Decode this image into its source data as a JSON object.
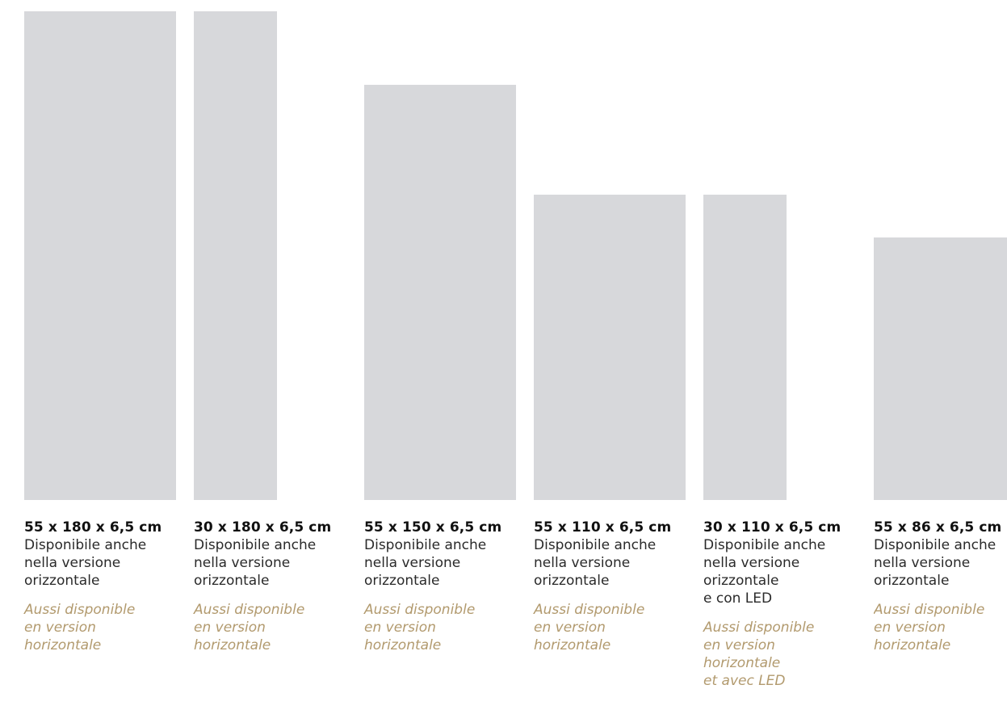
{
  "accent_color": "#b29a6e",
  "panel_color": "#d7d8db",
  "products": [
    {
      "dims": "55 x 180 x 6,5 cm",
      "it": [
        "Disponibile anche",
        "nella versione",
        "orizzontale"
      ],
      "fr": [
        "Aussi disponible",
        "en version",
        "horizontale"
      ]
    },
    {
      "dims": "30 x 180 x 6,5 cm",
      "it": [
        "Disponibile anche",
        "nella versione",
        "orizzontale"
      ],
      "fr": [
        "Aussi disponible",
        "en version",
        "horizontale"
      ]
    },
    {
      "dims": "55 x 150 x 6,5 cm",
      "it": [
        "Disponibile anche",
        "nella versione",
        "orizzontale"
      ],
      "fr": [
        "Aussi disponible",
        "en version",
        "horizontale"
      ]
    },
    {
      "dims": "55 x 110 x 6,5 cm",
      "it": [
        "Disponibile anche",
        "nella versione",
        "orizzontale"
      ],
      "fr": [
        "Aussi disponible",
        "en version",
        "horizontale"
      ]
    },
    {
      "dims": "30 x 110 x 6,5 cm",
      "it": [
        "Disponibile anche",
        "nella versione",
        "orizzontale",
        "e con LED"
      ],
      "fr": [
        "Aussi disponible",
        "en version",
        "horizontale",
        "et avec LED"
      ]
    },
    {
      "dims": "55 x 86 x 6,5 cm",
      "it": [
        "Disponibile anche",
        "nella versione",
        "orizzontale"
      ],
      "fr": [
        "Aussi disponible",
        "en version",
        "horizontale"
      ]
    }
  ]
}
